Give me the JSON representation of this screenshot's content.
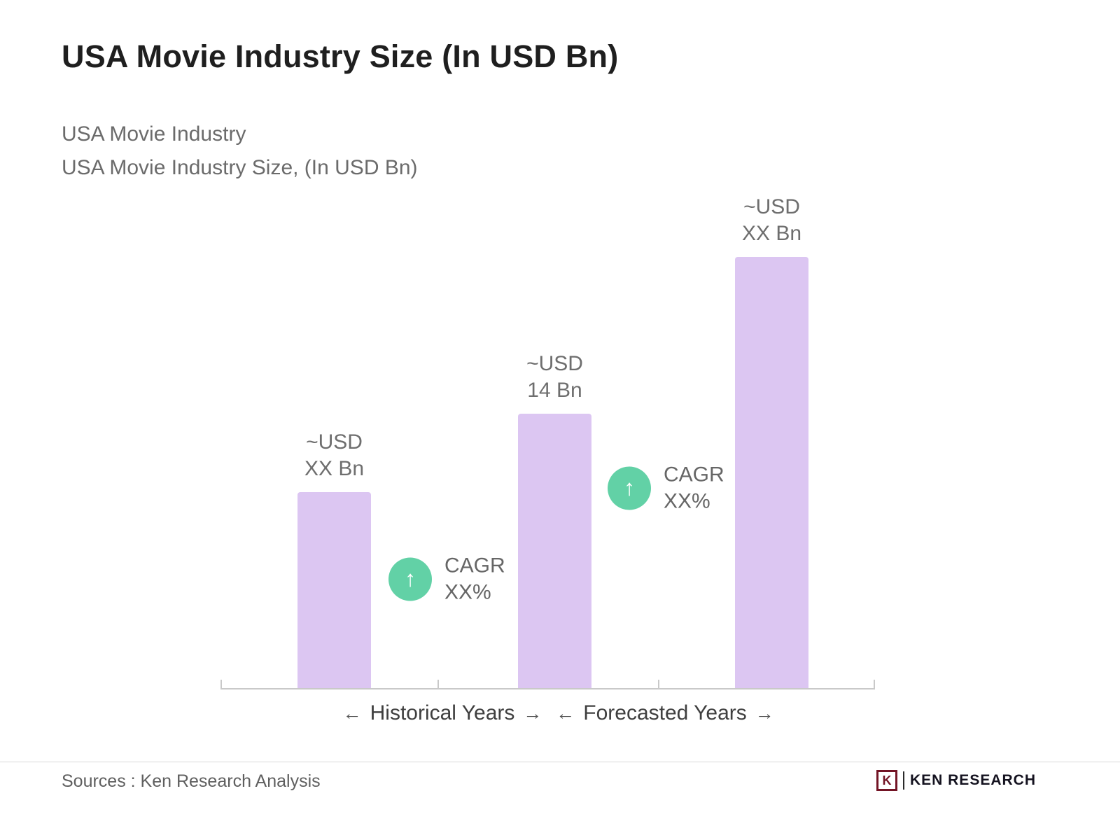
{
  "page": {
    "title": "USA Movie Industry Size (In USD Bn)",
    "subtitle_line1": "USA Movie Industry",
    "subtitle_line2": "USA Movie Industry Size, (In USD Bn)"
  },
  "chart_data": {
    "type": "bar",
    "title": "USA Movie Industry Size (In USD Bn)",
    "ylabel": "USD Bn",
    "ylim": [
      0,
      25
    ],
    "grid": false,
    "bar_color": "#dcc6f2",
    "annotation_color": "#62d1a6",
    "bars": [
      {
        "label_line1": "~USD",
        "label_line2": "XX Bn",
        "value_est_usd_bn": 10,
        "segment": "Historical Years"
      },
      {
        "label_line1": "~USD",
        "label_line2": "14 Bn",
        "value_est_usd_bn": 14,
        "segment": "Historical/Forecast boundary"
      },
      {
        "label_line1": "~USD",
        "label_line2": "XX Bn",
        "value_est_usd_bn": 22,
        "segment": "Forecasted Years"
      }
    ],
    "annotations": [
      {
        "icon": "↑",
        "line1": "CAGR",
        "line2": "XX%"
      },
      {
        "icon": "↑",
        "line1": "CAGR",
        "line2": "XX%"
      }
    ],
    "x_axis_segments": [
      {
        "left_arrow": "←",
        "label": "Historical Years",
        "right_arrow": "→"
      },
      {
        "left_arrow": "←",
        "label": "Forecasted Years",
        "right_arrow": "→"
      }
    ]
  },
  "footer": {
    "sources": "Sources : Ken Research Analysis",
    "logo_mark": "K",
    "logo_text": "KEN RESEARCH"
  }
}
